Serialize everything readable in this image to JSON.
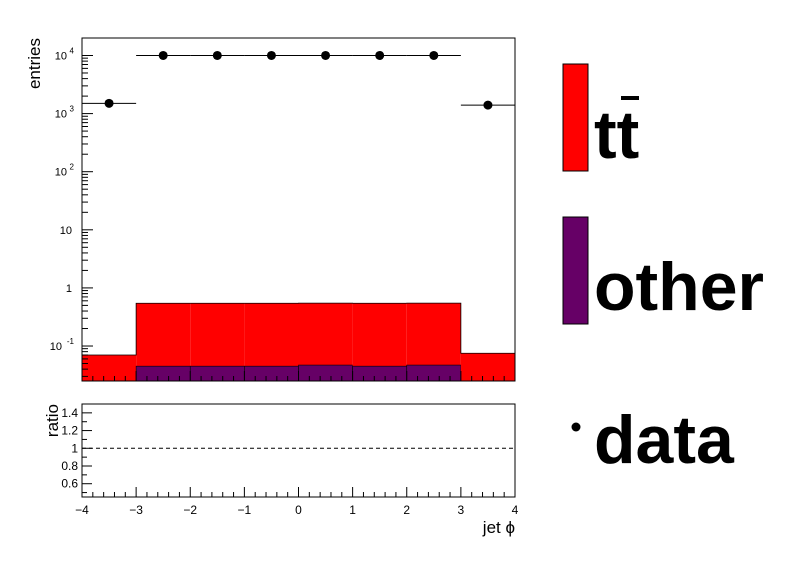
{
  "chart_data": [
    {
      "type": "bar",
      "panel": "main",
      "ylabel": "entries",
      "yscale": "log",
      "ylim": [
        0.025,
        20000
      ],
      "xlim": [
        -4,
        4
      ],
      "bin_edges": [
        -4,
        -3,
        -2,
        -1,
        0,
        1,
        2,
        3,
        4
      ],
      "y_ticks": [
        {
          "value": 0.1,
          "label": "10",
          "exp": "-1"
        },
        {
          "value": 1,
          "label": "1",
          "exp": ""
        },
        {
          "value": 10,
          "label": "10",
          "exp": ""
        },
        {
          "value": 100,
          "label": "10",
          "exp": "2"
        },
        {
          "value": 1000,
          "label": "10",
          "exp": "3"
        },
        {
          "value": 10000,
          "label": "10",
          "exp": "4"
        }
      ],
      "series": [
        {
          "name": "tt̄",
          "kind": "stacked-fill",
          "color": "#ff0000",
          "values": [
            0.07,
            0.5,
            0.5,
            0.5,
            0.5,
            0.5,
            0.5,
            0.075
          ]
        },
        {
          "name": "other",
          "kind": "stacked-fill",
          "color": "#660066",
          "values": [
            0.0,
            0.045,
            0.045,
            0.045,
            0.047,
            0.045,
            0.047,
            0.0
          ]
        },
        {
          "name": "data",
          "kind": "points",
          "color": "#000000",
          "x": [
            -3.5,
            -2.5,
            -1.5,
            -0.5,
            0.5,
            1.5,
            2.5,
            3.5
          ],
          "values": [
            1500,
            10000,
            10000,
            10000,
            10000,
            10000,
            10000,
            1400
          ],
          "xerr": 0.5
        }
      ]
    },
    {
      "type": "line",
      "panel": "ratio",
      "ylabel": "ratio",
      "xlabel": "jet ϕ",
      "ylim": [
        0.45,
        1.5
      ],
      "xlim": [
        -4,
        4
      ],
      "y_ticks": [
        0.6,
        0.8,
        1,
        1.2,
        1.4
      ],
      "y_tick_labels": [
        "0.6",
        "0.8",
        "1",
        "1.2",
        "1.4"
      ],
      "x_ticks": [
        -4,
        -3,
        -2,
        -1,
        0,
        1,
        2,
        3,
        4
      ],
      "x_tick_labels": [
        "−4",
        "−3",
        "−2",
        "−1",
        "0",
        "1",
        "2",
        "3",
        "4"
      ],
      "reference_line": 1,
      "series": [
        {
          "x": [
            -3.5,
            -2.5,
            -1.5,
            -0.5,
            0.5,
            1.5,
            2.5,
            3.5
          ],
          "values": [
            1,
            1,
            1,
            1,
            1,
            1,
            1,
            1
          ]
        }
      ]
    }
  ],
  "legend": {
    "placement": "right",
    "entries": [
      {
        "label": "tt",
        "overline": "t",
        "color": "#ff0000",
        "kind": "fill"
      },
      {
        "label": "other",
        "color": "#660066",
        "kind": "fill"
      },
      {
        "label": "data",
        "color": "#000000",
        "kind": "marker"
      }
    ]
  }
}
